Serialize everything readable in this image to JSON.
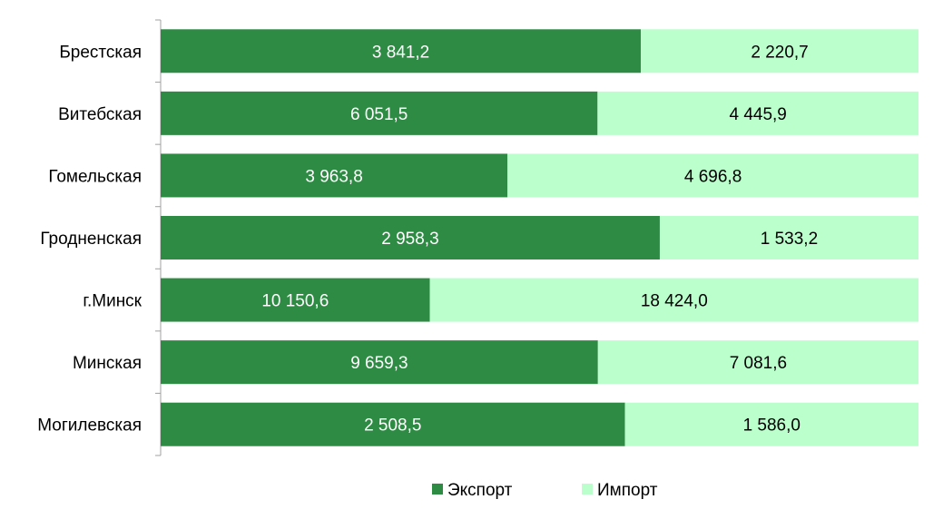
{
  "chart_data": {
    "type": "bar",
    "orientation": "horizontal",
    "stacked": true,
    "normalized_percent": true,
    "categories": [
      "Брестская",
      "Витебская",
      "Гомельская",
      "Гродненская",
      "г.Минск",
      "Минская",
      "Могилевская"
    ],
    "series": [
      {
        "name": "Экспорт",
        "color": "#2e8b44",
        "values": [
          3841.2,
          6051.5,
          3963.8,
          2958.3,
          10150.6,
          9659.3,
          2508.5
        ],
        "labels": [
          "3 841,2",
          "6 051,5",
          "3 963,8",
          "2 958,3",
          "10 150,6",
          "9 659,3",
          "2 508,5"
        ]
      },
      {
        "name": "Импорт",
        "color": "#bbffcc",
        "values": [
          2220.7,
          4445.9,
          4696.8,
          1533.2,
          18424.0,
          7081.6,
          1586.0
        ],
        "labels": [
          "2 220,7",
          "4 445,9",
          "4 696,8",
          "1 533,2",
          "18 424,0",
          "7 081,6",
          "1 586,0"
        ]
      }
    ],
    "legend_position": "bottom",
    "grid": false
  }
}
